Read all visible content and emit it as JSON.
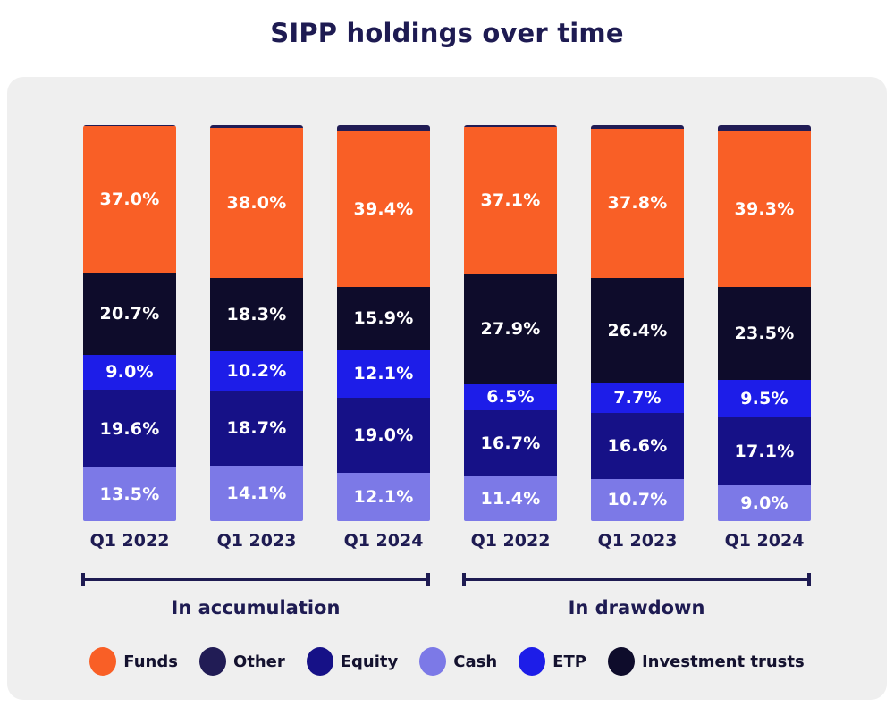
{
  "title": "SIPP holdings over time",
  "chart_data": {
    "type": "bar",
    "subtype": "stacked-percentage-grouped",
    "title": "SIPP holdings over time",
    "unit": "%",
    "ylim": [
      0,
      100
    ],
    "grid": false,
    "legend_position": "bottom",
    "stack_order_top_to_bottom": [
      "Other",
      "Funds",
      "Investment trusts",
      "ETP",
      "Equity",
      "Cash"
    ],
    "legend": [
      {
        "name": "Funds",
        "color": "#f95f26"
      },
      {
        "name": "Other",
        "color": "#211c55"
      },
      {
        "name": "Equity",
        "color": "#161187"
      },
      {
        "name": "Cash",
        "color": "#7c79e7"
      },
      {
        "name": "ETP",
        "color": "#1d1de8"
      },
      {
        "name": "Investment trusts",
        "color": "#0e0c2b"
      }
    ],
    "groups": [
      {
        "label": "In accumulation",
        "bars": [
          {
            "category": "Q1 2022",
            "segments": [
              {
                "series": "Other",
                "value": 0.2,
                "label": ""
              },
              {
                "series": "Funds",
                "value": 37.0,
                "label": "37.0%"
              },
              {
                "series": "Investment trusts",
                "value": 20.7,
                "label": "20.7%"
              },
              {
                "series": "ETP",
                "value": 9.0,
                "label": "9.0%"
              },
              {
                "series": "Equity",
                "value": 19.6,
                "label": "19.6%"
              },
              {
                "series": "Cash",
                "value": 13.5,
                "label": "13.5%"
              }
            ]
          },
          {
            "category": "Q1 2023",
            "segments": [
              {
                "series": "Other",
                "value": 0.7,
                "label": ""
              },
              {
                "series": "Funds",
                "value": 38.0,
                "label": "38.0%"
              },
              {
                "series": "Investment trusts",
                "value": 18.3,
                "label": "18.3%"
              },
              {
                "series": "ETP",
                "value": 10.2,
                "label": "10.2%"
              },
              {
                "series": "Equity",
                "value": 18.7,
                "label": "18.7%"
              },
              {
                "series": "Cash",
                "value": 14.1,
                "label": "14.1%"
              }
            ]
          },
          {
            "category": "Q1 2024",
            "segments": [
              {
                "series": "Other",
                "value": 1.5,
                "label": ""
              },
              {
                "series": "Funds",
                "value": 39.4,
                "label": "39.4%"
              },
              {
                "series": "Investment trusts",
                "value": 15.9,
                "label": "15.9%"
              },
              {
                "series": "ETP",
                "value": 12.1,
                "label": "12.1%"
              },
              {
                "series": "Equity",
                "value": 19.0,
                "label": "19.0%"
              },
              {
                "series": "Cash",
                "value": 12.1,
                "label": "12.1%"
              }
            ]
          }
        ]
      },
      {
        "label": "In drawdown",
        "bars": [
          {
            "category": "Q1 2022",
            "segments": [
              {
                "series": "Other",
                "value": 0.4,
                "label": ""
              },
              {
                "series": "Funds",
                "value": 37.1,
                "label": "37.1%"
              },
              {
                "series": "Investment trusts",
                "value": 27.9,
                "label": "27.9%"
              },
              {
                "series": "ETP",
                "value": 6.5,
                "label": "6.5%"
              },
              {
                "series": "Equity",
                "value": 16.7,
                "label": "16.7%"
              },
              {
                "series": "Cash",
                "value": 11.4,
                "label": "11.4%"
              }
            ]
          },
          {
            "category": "Q1 2023",
            "segments": [
              {
                "series": "Other",
                "value": 0.8,
                "label": ""
              },
              {
                "series": "Funds",
                "value": 37.8,
                "label": "37.8%"
              },
              {
                "series": "Investment trusts",
                "value": 26.4,
                "label": "26.4%"
              },
              {
                "series": "ETP",
                "value": 7.7,
                "label": "7.7%"
              },
              {
                "series": "Equity",
                "value": 16.6,
                "label": "16.6%"
              },
              {
                "series": "Cash",
                "value": 10.7,
                "label": "10.7%"
              }
            ]
          },
          {
            "category": "Q1 2024",
            "segments": [
              {
                "series": "Other",
                "value": 1.6,
                "label": ""
              },
              {
                "series": "Funds",
                "value": 39.3,
                "label": "39.3%"
              },
              {
                "series": "Investment trusts",
                "value": 23.5,
                "label": "23.5%"
              },
              {
                "series": "ETP",
                "value": 9.5,
                "label": "9.5%"
              },
              {
                "series": "Equity",
                "value": 17.1,
                "label": "17.1%"
              },
              {
                "series": "Cash",
                "value": 9.0,
                "label": "9.0%"
              }
            ]
          }
        ]
      }
    ]
  },
  "style": {
    "panel_bg": "#efefef",
    "text_navy": "#1e1b52",
    "value_label_color": "#ffffff"
  }
}
